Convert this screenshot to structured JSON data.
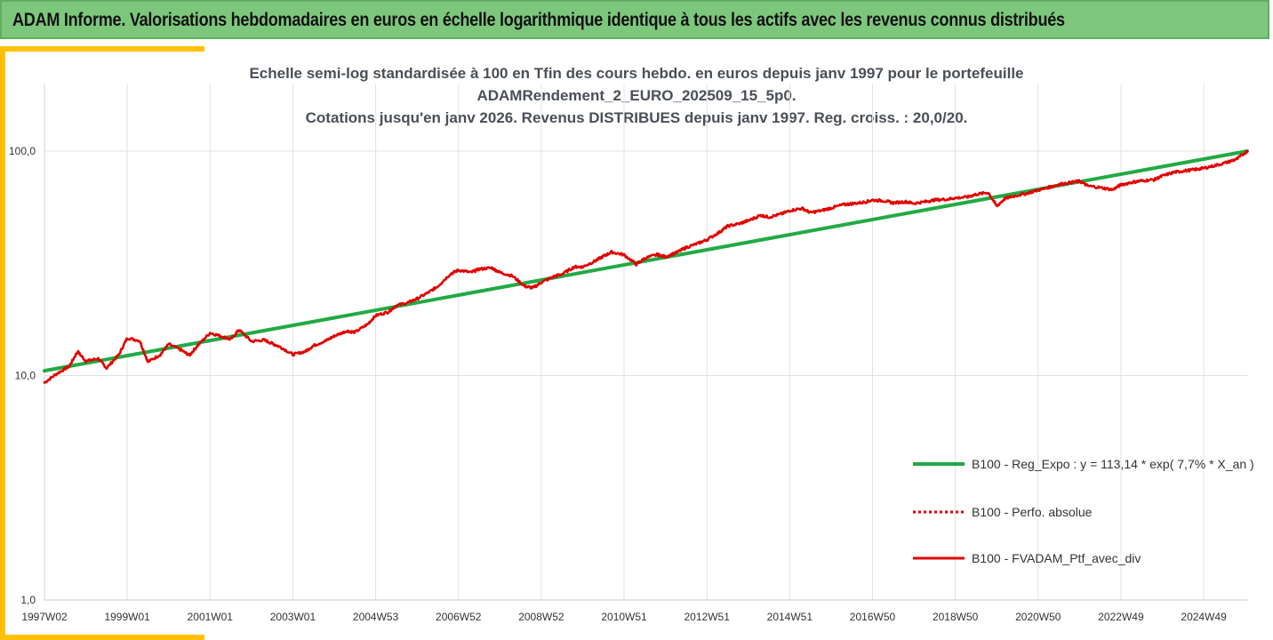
{
  "header": {
    "title": "ADAM Informe. Valorisations hebdomadaires en euros en échelle logarithmique identique à tous les actifs avec les revenus connus distribués"
  },
  "chart_data": {
    "type": "line",
    "title_lines": [
      "Echelle semi-log standardisée à 100 en Tfin des cours hebdo.  en euros depuis janv 1997 pour le portefeuille",
      "ADAMRendement_2_EURO_202509_15_5p0.",
      "Cotations  jusqu'en janv 2026. Revenus DISTRIBUES depuis janv 1997. Reg. croiss. : 20,0/20."
    ],
    "yscale": "log",
    "ylim": [
      1,
      100
    ],
    "yticks": [
      "1,0",
      "10,0",
      "100,0"
    ],
    "xlim": [
      1997.0,
      2026.05
    ],
    "xticks": [
      {
        "label": "1997W02",
        "x": 1997.0
      },
      {
        "label": "1999W01",
        "x": 1999.0
      },
      {
        "label": "2001W01",
        "x": 2001.0
      },
      {
        "label": "2003W01",
        "x": 2003.0
      },
      {
        "label": "2004W53",
        "x": 2005.0
      },
      {
        "label": "2006W52",
        "x": 2007.0
      },
      {
        "label": "2008W52",
        "x": 2009.0
      },
      {
        "label": "2010W51",
        "x": 2011.0
      },
      {
        "label": "2012W51",
        "x": 2013.0
      },
      {
        "label": "2014W51",
        "x": 2015.0
      },
      {
        "label": "2016W50",
        "x": 2017.0
      },
      {
        "label": "2018W50",
        "x": 2019.0
      },
      {
        "label": "2020W50",
        "x": 2021.0
      },
      {
        "label": "2022W49",
        "x": 2023.0
      },
      {
        "label": "2024W49",
        "x": 2025.0
      }
    ],
    "grid": true,
    "legend_position": "bottom-right",
    "series": [
      {
        "name": "B100 - Reg_Expo : y = 113,14 * exp( 7,7% *  X_an )",
        "color": "#22aa44",
        "style": "solid",
        "x": [
          1997.0,
          2026.05
        ],
        "y": [
          10.5,
          100.0
        ]
      },
      {
        "name": "B100 - Perfo. absolue",
        "color": "#e00000",
        "style": "dotted",
        "x": [],
        "y": []
      },
      {
        "name": "B100 - FVADAM_Ptf_avec_div",
        "color": "#e00000",
        "style": "solid",
        "x": [
          1997.0,
          1997.3,
          1997.6,
          1997.8,
          1998.0,
          1998.3,
          1998.5,
          1998.8,
          1999.0,
          1999.3,
          1999.5,
          1999.8,
          2000.0,
          2000.3,
          2000.5,
          2000.7,
          2001.0,
          2001.3,
          2001.5,
          2001.7,
          2002.0,
          2002.3,
          2002.5,
          2002.7,
          2003.0,
          2003.3,
          2003.5,
          2003.8,
          2004.0,
          2004.3,
          2004.5,
          2004.8,
          2005.0,
          2005.3,
          2005.5,
          2005.8,
          2006.0,
          2006.3,
          2006.5,
          2006.8,
          2007.0,
          2007.3,
          2007.5,
          2007.8,
          2008.0,
          2008.3,
          2008.6,
          2008.8,
          2009.0,
          2009.3,
          2009.5,
          2009.8,
          2010.0,
          2010.3,
          2010.5,
          2010.7,
          2011.0,
          2011.3,
          2011.5,
          2011.8,
          2012.0,
          2012.3,
          2012.5,
          2012.8,
          2013.0,
          2013.3,
          2013.5,
          2013.8,
          2014.0,
          2014.3,
          2014.5,
          2014.8,
          2015.0,
          2015.3,
          2015.5,
          2015.8,
          2016.0,
          2016.3,
          2016.5,
          2016.8,
          2017.0,
          2017.3,
          2017.5,
          2017.8,
          2018.0,
          2018.3,
          2018.5,
          2018.8,
          2019.0,
          2019.3,
          2019.5,
          2019.8,
          2020.0,
          2020.2,
          2020.4,
          2020.7,
          2021.0,
          2021.3,
          2021.5,
          2021.8,
          2022.0,
          2022.2,
          2022.5,
          2022.8,
          2023.0,
          2023.3,
          2023.5,
          2023.8,
          2024.0,
          2024.3,
          2024.5,
          2024.8,
          2025.0,
          2025.3,
          2025.6,
          2025.8,
          2026.05
        ],
        "y": [
          9.3,
          10.2,
          11.0,
          12.8,
          11.6,
          11.9,
          10.8,
          12.4,
          14.7,
          14.3,
          11.5,
          12.4,
          13.8,
          13.0,
          12.3,
          13.6,
          15.5,
          14.9,
          14.5,
          16.0,
          14.2,
          14.4,
          13.9,
          13.4,
          12.4,
          12.8,
          13.6,
          14.3,
          15.0,
          15.8,
          15.6,
          16.9,
          18.5,
          19.2,
          20.5,
          21.2,
          22.0,
          23.6,
          25.0,
          28.3,
          29.5,
          28.8,
          29.8,
          30.2,
          28.8,
          27.8,
          25.0,
          24.6,
          26.0,
          27.6,
          28.3,
          30.5,
          30.5,
          32.4,
          34.0,
          35.5,
          34.5,
          31.3,
          33.3,
          34.6,
          33.8,
          35.6,
          37.2,
          38.9,
          40.3,
          43.5,
          46.3,
          47.6,
          49.0,
          51.8,
          50.8,
          52.5,
          54.3,
          55.6,
          53.2,
          54.5,
          55.8,
          57.8,
          58.3,
          59.2,
          60.5,
          60.0,
          58.8,
          59.5,
          58.5,
          59.6,
          60.6,
          61.0,
          61.8,
          62.5,
          64.2,
          65.3,
          56.8,
          61.5,
          63.0,
          64.6,
          67.0,
          69.3,
          71.0,
          72.6,
          73.5,
          70.0,
          68.8,
          67.3,
          70.8,
          72.8,
          73.8,
          74.6,
          77.5,
          80.6,
          81.5,
          82.8,
          84.0,
          86.5,
          89.6,
          92.2,
          100.0
        ]
      }
    ]
  }
}
